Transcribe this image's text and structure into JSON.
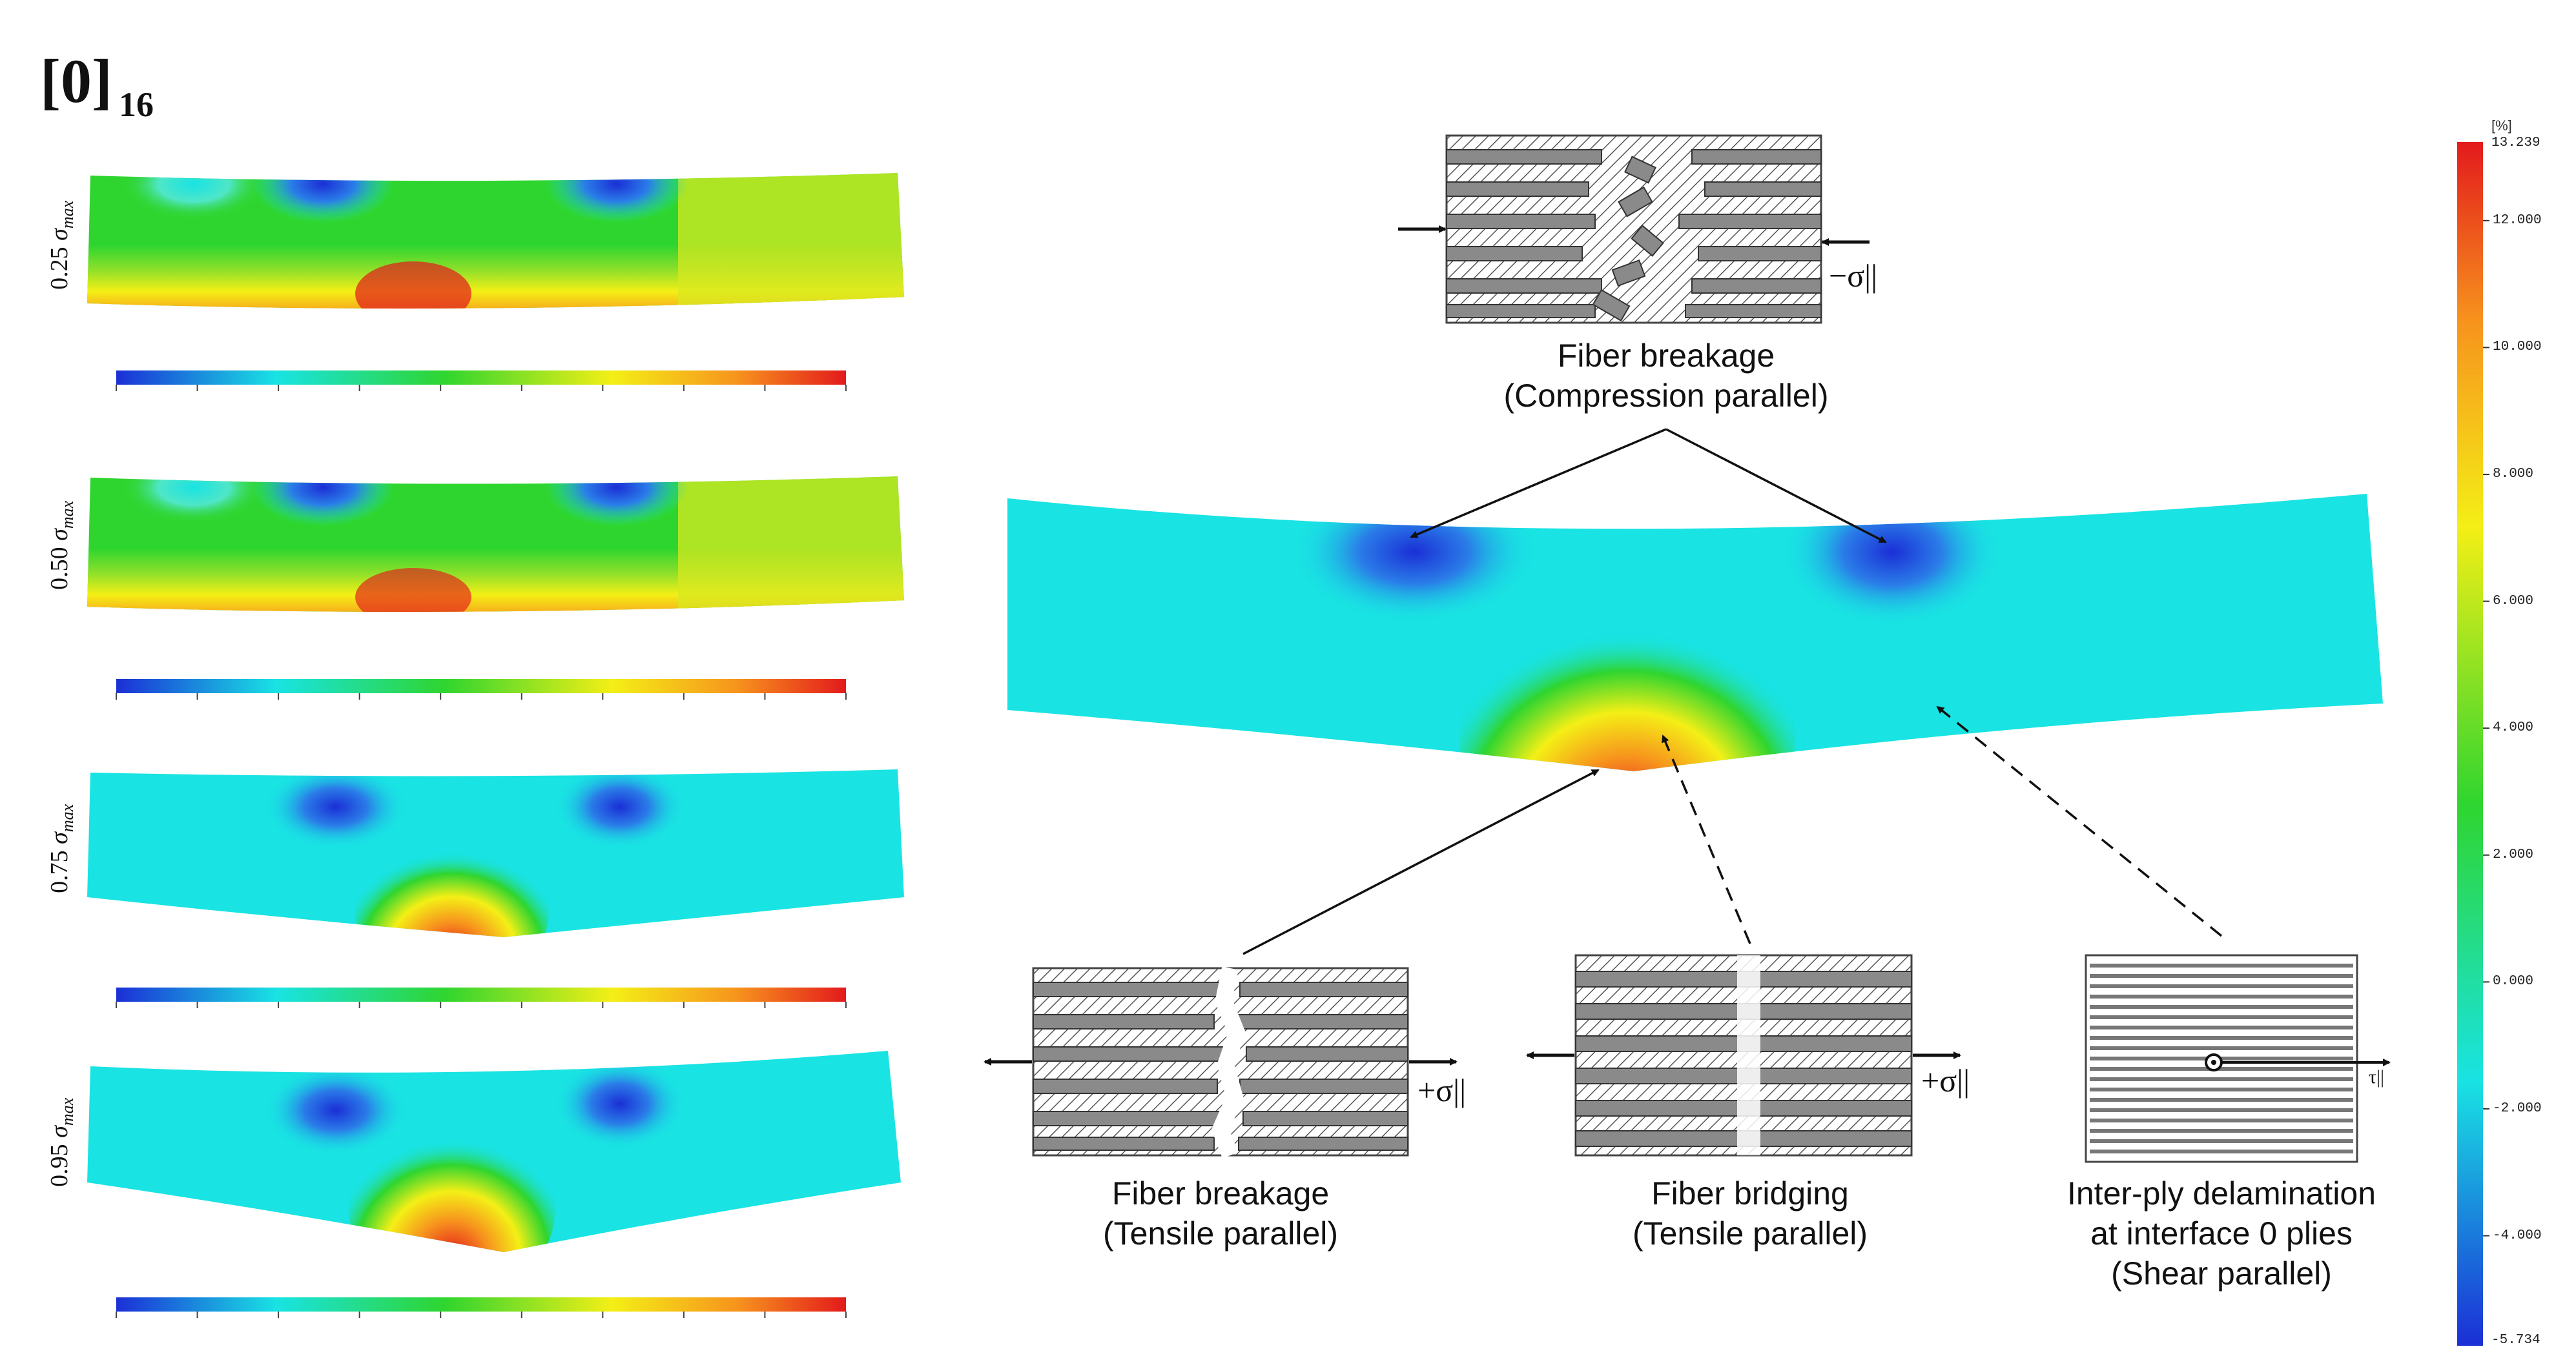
{
  "title": {
    "main": "[0]",
    "sub": "16"
  },
  "stress_levels": [
    {
      "coef": "0.25",
      "sigma": "σ",
      "sub": "max"
    },
    {
      "coef": "0.50",
      "sigma": "σ",
      "sub": "max"
    },
    {
      "coef": "0.75",
      "sigma": "σ",
      "sub": "max"
    },
    {
      "coef": "0.95",
      "sigma": "σ",
      "sub": "max"
    }
  ],
  "captions": {
    "compression": [
      "Fiber breakage",
      "(Compression parallel)"
    ],
    "tensile": [
      "Fiber breakage",
      "(Tensile parallel)"
    ],
    "bridging": [
      "Fiber bridging",
      "(Tensile parallel)"
    ],
    "delamination": [
      "Inter-ply delamination",
      "at interface 0 plies",
      "(Shear parallel)"
    ]
  },
  "symbols": {
    "neg_sigma": "−σ||",
    "pos_sigma": "+σ||",
    "tau": "τ||"
  },
  "colorbar": {
    "unit": "[%]",
    "max_label": "13.239",
    "min_label": "-5.734",
    "ticks": [
      "12.000",
      "10.000",
      "8.000",
      "6.000",
      "4.000",
      "2.000",
      "0.000",
      "-2.000",
      "-4.000"
    ]
  },
  "colors": {
    "blue": "#1b2fd6",
    "cyan": "#19e3e3",
    "green": "#2fd52f",
    "yellow": "#f4ef16",
    "orange": "#f7941d",
    "red": "#e31a1c"
  }
}
